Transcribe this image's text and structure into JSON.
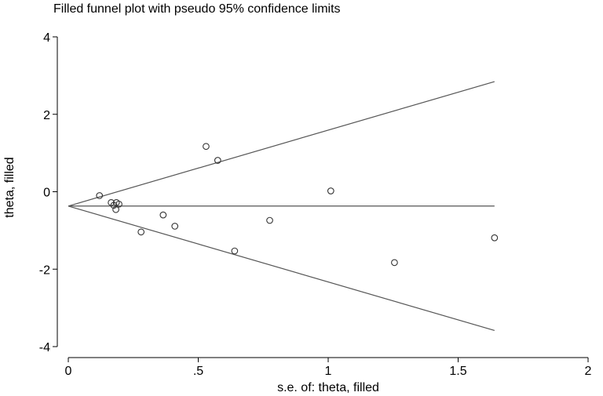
{
  "chart_data": {
    "type": "scatter",
    "title": "Filled funnel plot with pseudo 95% confidence limits",
    "xlabel": "s.e. of: theta, filled",
    "ylabel": "theta, filled",
    "xlim": [
      0,
      2
    ],
    "ylim": [
      -4,
      4
    ],
    "x_ticks": [
      0,
      0.5,
      1,
      1.5,
      2
    ],
    "x_tick_labels": [
      "0",
      ".5",
      "1",
      "1.5",
      "2"
    ],
    "y_ticks": [
      -4,
      -2,
      0,
      2,
      4
    ],
    "y_tick_labels": [
      "-4",
      "-2",
      "0",
      "2",
      "4"
    ],
    "grid": false,
    "funnel": {
      "pooled_estimate": -0.37,
      "max_se": 1.64,
      "z": 1.96
    },
    "points": [
      {
        "x": 0.12,
        "y": -0.1
      },
      {
        "x": 0.165,
        "y": -0.28
      },
      {
        "x": 0.175,
        "y": -0.35
      },
      {
        "x": 0.183,
        "y": -0.46
      },
      {
        "x": 0.185,
        "y": -0.28
      },
      {
        "x": 0.195,
        "y": -0.32
      },
      {
        "x": 0.28,
        "y": -1.04
      },
      {
        "x": 0.365,
        "y": -0.6
      },
      {
        "x": 0.41,
        "y": -0.89
      },
      {
        "x": 0.53,
        "y": 1.17
      },
      {
        "x": 0.575,
        "y": 0.81
      },
      {
        "x": 0.64,
        "y": -1.53
      },
      {
        "x": 0.775,
        "y": -0.74
      },
      {
        "x": 1.01,
        "y": 0.02
      },
      {
        "x": 1.255,
        "y": -1.83
      },
      {
        "x": 1.64,
        "y": -1.19
      }
    ]
  }
}
